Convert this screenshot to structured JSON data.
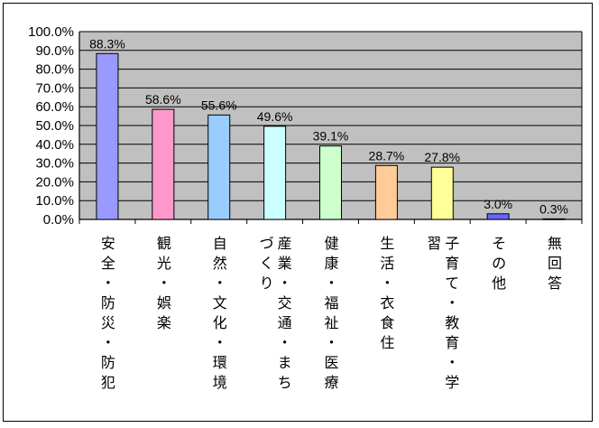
{
  "chart_data": {
    "type": "bar",
    "title": "",
    "xlabel": "",
    "ylabel": "",
    "ylim": [
      0,
      100
    ],
    "y_tick_step": 10,
    "y_tick_format": "percent_1dp",
    "grid": "horizontal",
    "plot_background": "#c0c0c0",
    "categories": [
      "安全・防災・防犯",
      "観光・娯楽",
      "自然・文化・環境",
      "産業・交通・まちづくり",
      "健康・福祉・医療",
      "生活・衣食住",
      "子育て・教育・学習",
      "その他",
      "無回答"
    ],
    "values": [
      88.3,
      58.6,
      55.6,
      49.6,
      39.1,
      28.7,
      27.8,
      3.0,
      0.3
    ],
    "data_labels": [
      "88.3%",
      "58.6%",
      "55.6%",
      "49.6%",
      "39.1%",
      "28.7%",
      "27.8%",
      "3.0%",
      "0.3%"
    ],
    "colors": [
      "#9999ff",
      "#ff99cc",
      "#99ccff",
      "#ccffff",
      "#ccffcc",
      "#ffcc99",
      "#ffff99",
      "#6666ff",
      "#999999"
    ]
  }
}
